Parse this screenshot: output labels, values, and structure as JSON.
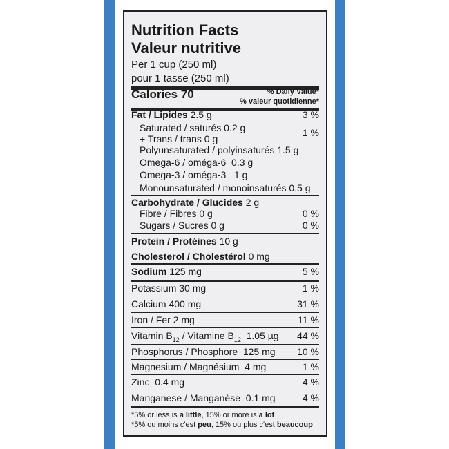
{
  "header": {
    "title_en": "Nutrition Facts",
    "title_fr": "Valeur nutritive",
    "serving_en": "Per 1 cup (250 ml)",
    "serving_fr": "pour 1 tasse (250 ml)"
  },
  "calories": {
    "label": "Calories 70",
    "dv_en": "% Daily Value*",
    "dv_fr": "% valeur quotidienne*"
  },
  "rows": [
    {
      "label": "Fat / Lipides",
      "amount": " 2.5 g",
      "dv": "3 %"
    },
    {
      "label": "Saturated / saturés 0.2 g",
      "dv": "1 %"
    },
    {
      "label": "+ Trans / trans 0 g"
    },
    {
      "label": "Polyunsaturated / polyinsaturés 1.5 g"
    },
    {
      "label": "Omega-6 / oméga-6  0.3 g"
    },
    {
      "label": "Omega-3 / oméga-3   1 g"
    },
    {
      "label": "Monounsaturated / monoinsaturés 0.5 g"
    },
    {
      "label": "Carbohydrate / Glucides",
      "amount": " 2 g"
    },
    {
      "label": "Fibre / Fibres 0 g",
      "dv": "0 %"
    },
    {
      "label": "Sugars / Sucres 0 g",
      "dv": "0 %"
    },
    {
      "label": "Protein / Protéines",
      "amount": " 10 g"
    },
    {
      "label": "Cholesterol / Cholestérol",
      "amount": " 0 mg"
    },
    {
      "label": "Sodium",
      "amount": " 125 mg",
      "dv": "5 %"
    },
    {
      "label": "Potassium 30 mg",
      "dv": "1 %"
    },
    {
      "label": "Calcium 400 mg",
      "dv": "31 %"
    },
    {
      "label": "Iron / Fer 2 mg",
      "dv": "11 %"
    },
    {
      "parts": [
        "Vitamin B",
        "12",
        " / Vitamine B",
        "12",
        "  1.05 µg"
      ],
      "dv": "44 %"
    },
    {
      "label": "Phosphorus / Phosphore  125 mg",
      "dv": "10 %"
    },
    {
      "label": "Magnesium / Magnésium  4 mg",
      "dv": "1 %"
    },
    {
      "label": "Zinc  0.4 mg",
      "dv": "4 %"
    },
    {
      "label": "Manganese / Manganèse  0.1 mg",
      "dv": "4 %"
    }
  ],
  "footnote": {
    "en": [
      "*5% or less is ",
      "a little",
      ", 15% or more is ",
      "a lot"
    ],
    "fr": [
      "*5% ou moins c'est ",
      "peu",
      ", 15% ou plus c'est ",
      "beaucoup"
    ]
  }
}
